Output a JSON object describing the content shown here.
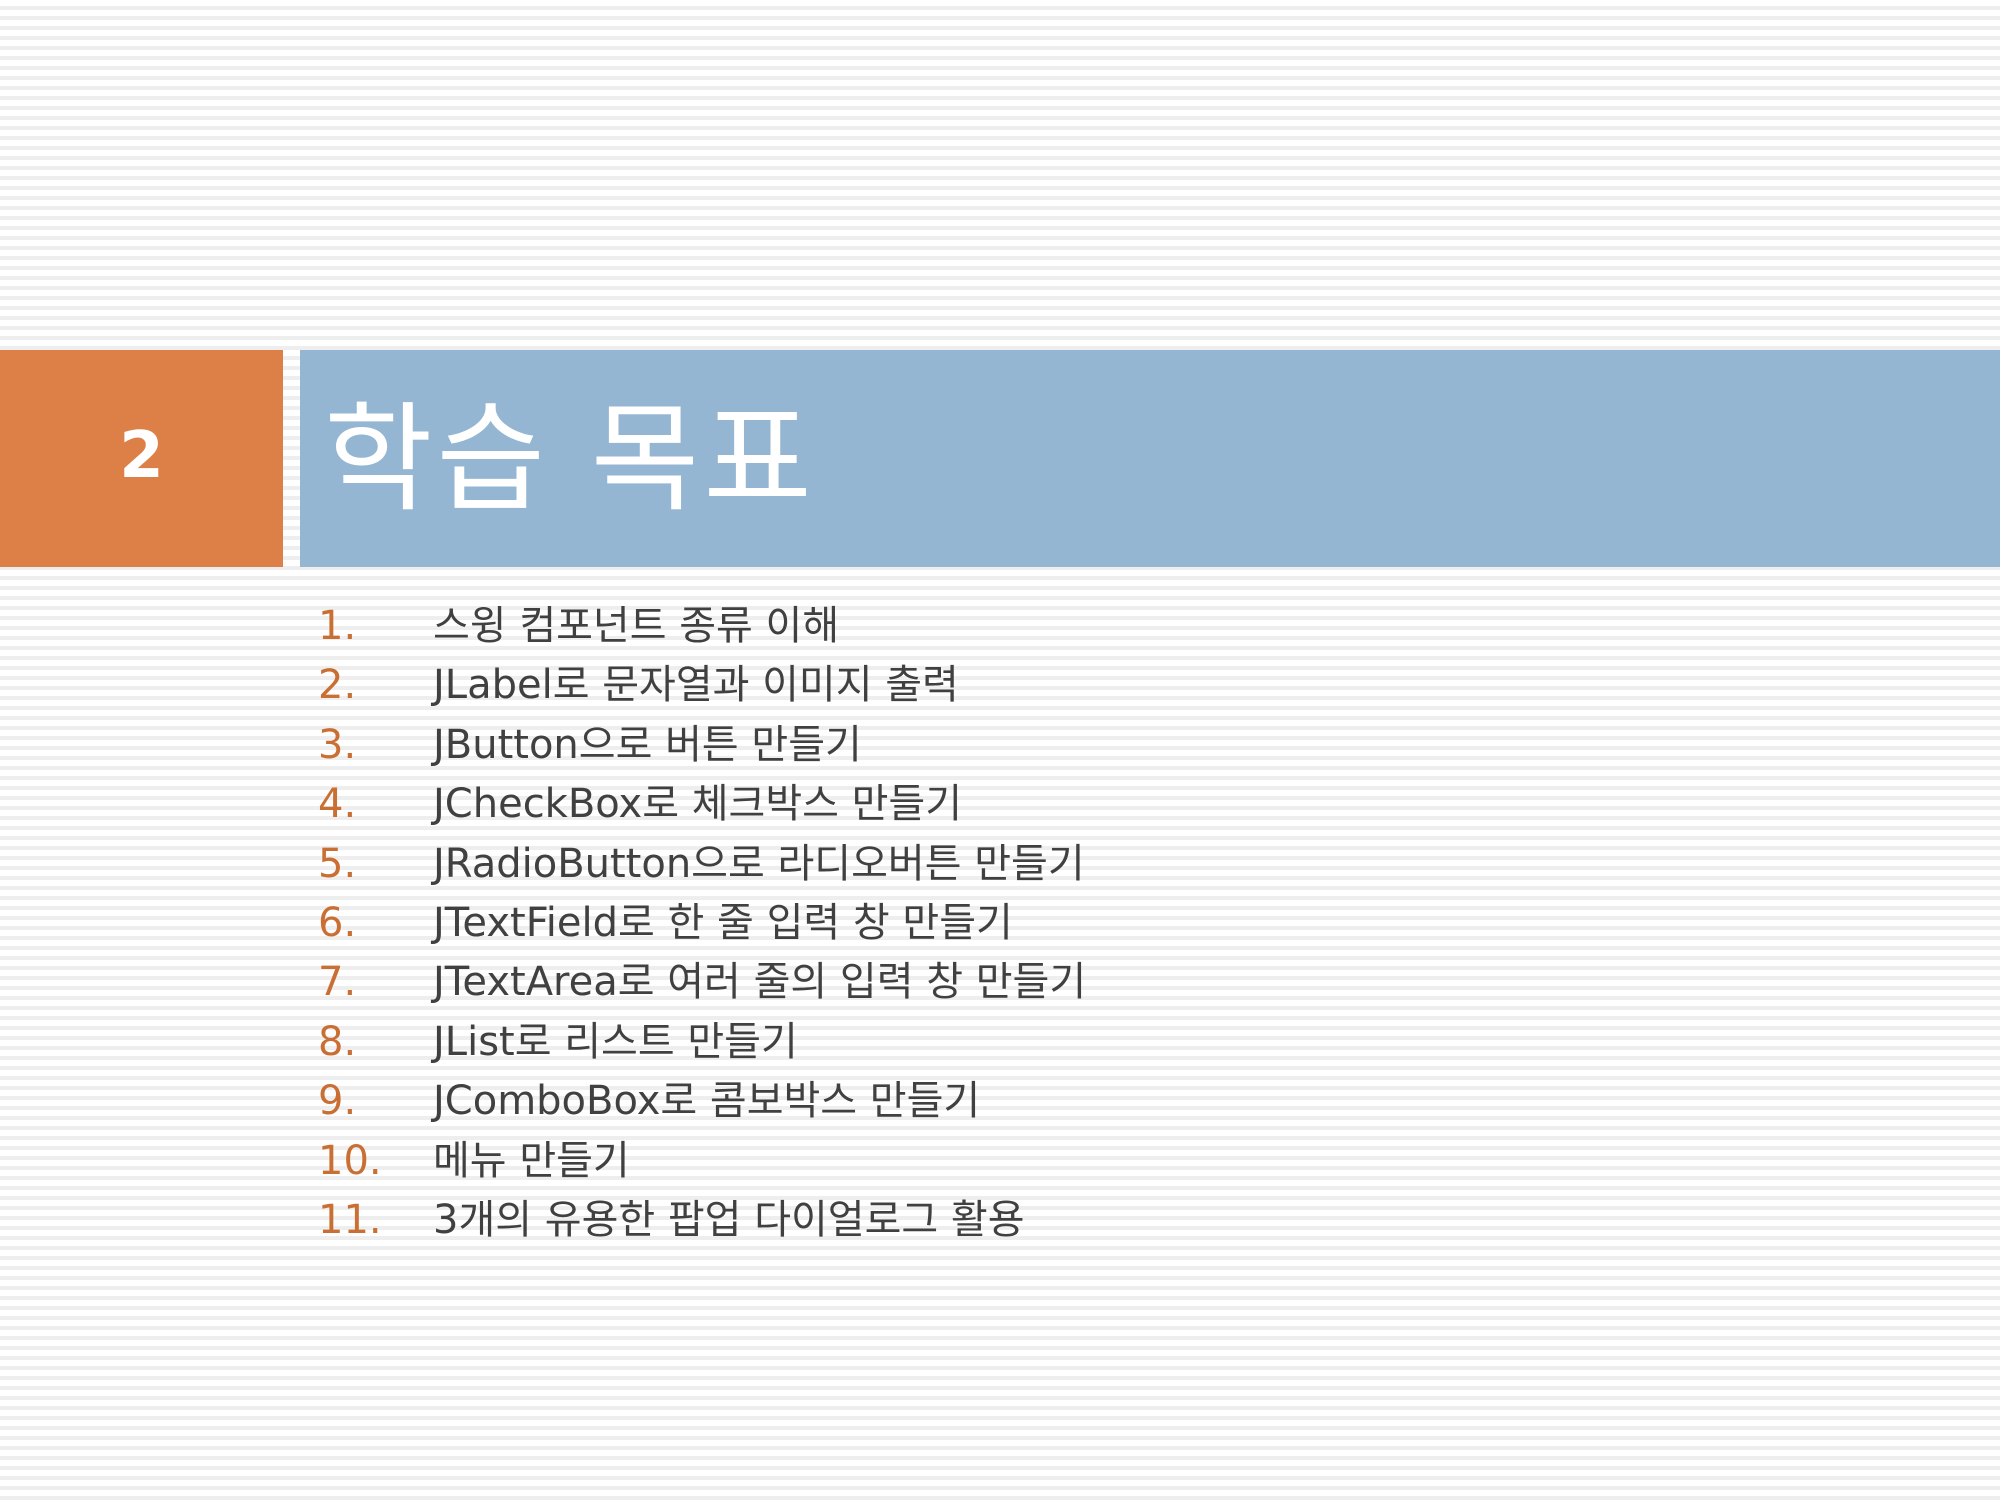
{
  "slide": {
    "number": "2",
    "title": "학습 목표"
  },
  "objectives": [
    {
      "num": "1.",
      "text": "스윙 컴포넌트 종류 이해"
    },
    {
      "num": "2.",
      "text": "JLabel로 문자열과 이미지 출력"
    },
    {
      "num": "3.",
      "text": "JButton으로 버튼 만들기"
    },
    {
      "num": "4.",
      "text": "JCheckBox로 체크박스 만들기"
    },
    {
      "num": "5.",
      "text": "JRadioButton으로 라디오버튼 만들기"
    },
    {
      "num": "6.",
      "text": "JTextField로 한 줄 입력 창 만들기"
    },
    {
      "num": "7.",
      "text": "JTextArea로 여러 줄의 입력 창 만들기"
    },
    {
      "num": "8.",
      "text": "JList로 리스트 만들기"
    },
    {
      "num": "9.",
      "text": "JComboBox로 콤보박스 만들기"
    },
    {
      "num": "10.",
      "text": "메뉴 만들기"
    },
    {
      "num": "11.",
      "text": "3개의 유용한 팝업 다이얼로그 활용"
    }
  ],
  "colors": {
    "accent_orange": "#dd8047",
    "title_blue": "#94b6d2",
    "number_orange": "#c96f33",
    "body_text": "#404040"
  }
}
